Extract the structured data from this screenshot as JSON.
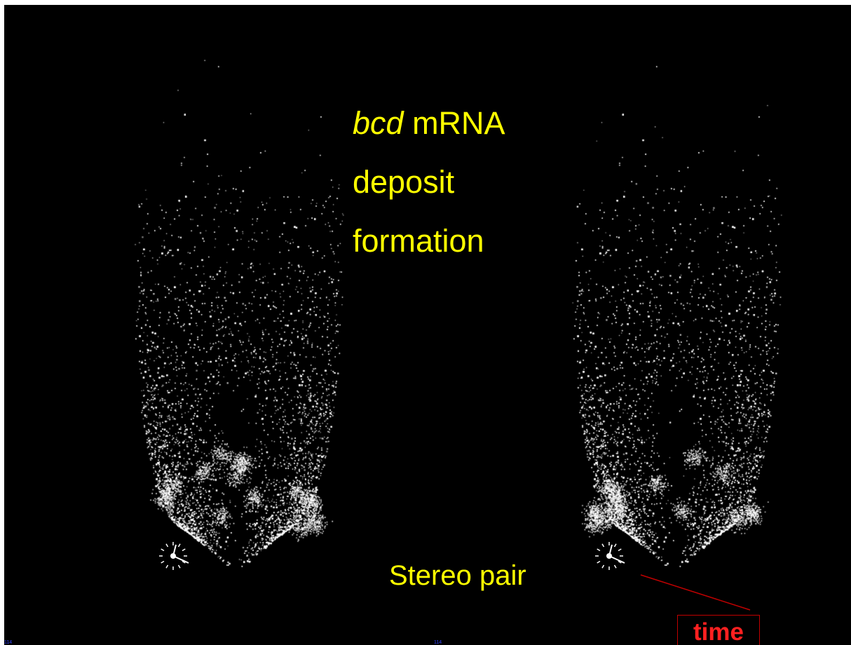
{
  "title": {
    "line1_italic": "bcd",
    "line1_rest": " mRNA",
    "line2": "deposit",
    "line3": "formation"
  },
  "caption": "Stereo pair",
  "callout": {
    "label": "time"
  },
  "frame_number": "114",
  "colors": {
    "background": "#000000",
    "title_text": "#ffff00",
    "callout": "#c00000",
    "callout_text": "#ff2020",
    "frame_number": "#3344ff",
    "particles": "#ffffff"
  },
  "icons": [
    "clock-icon-left",
    "clock-icon-right"
  ]
}
